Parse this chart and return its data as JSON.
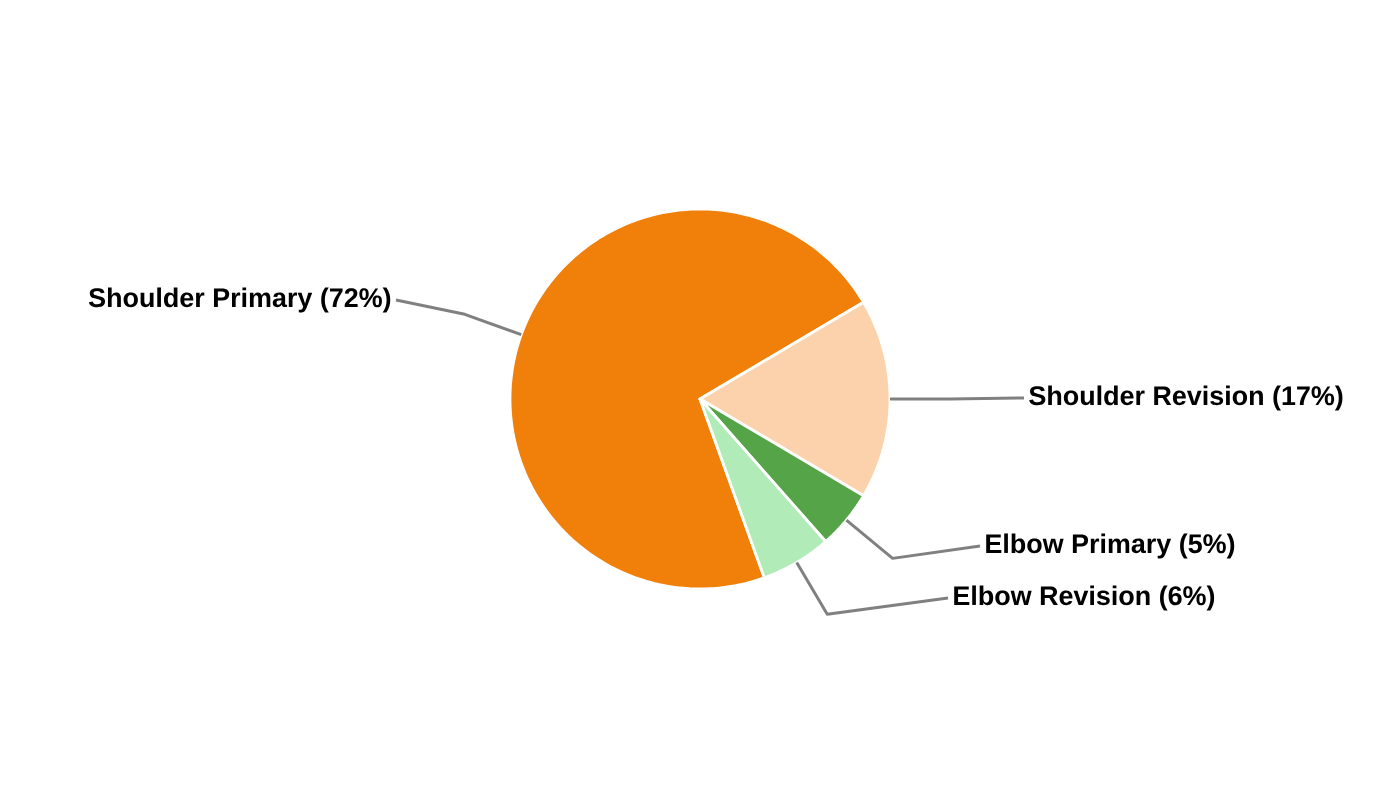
{
  "chart_data": {
    "type": "pie",
    "categories": [
      "Shoulder Primary",
      "Shoulder Revision",
      "Elbow Primary",
      "Elbow Revision"
    ],
    "values": [
      72,
      17,
      5,
      6
    ],
    "colors": [
      "#f0800a",
      "#fcd2ac",
      "#55a447",
      "#b0ebb8"
    ],
    "value_labels": [
      "(72%)",
      "(17%)",
      "(5%)",
      "(6%)"
    ]
  }
}
